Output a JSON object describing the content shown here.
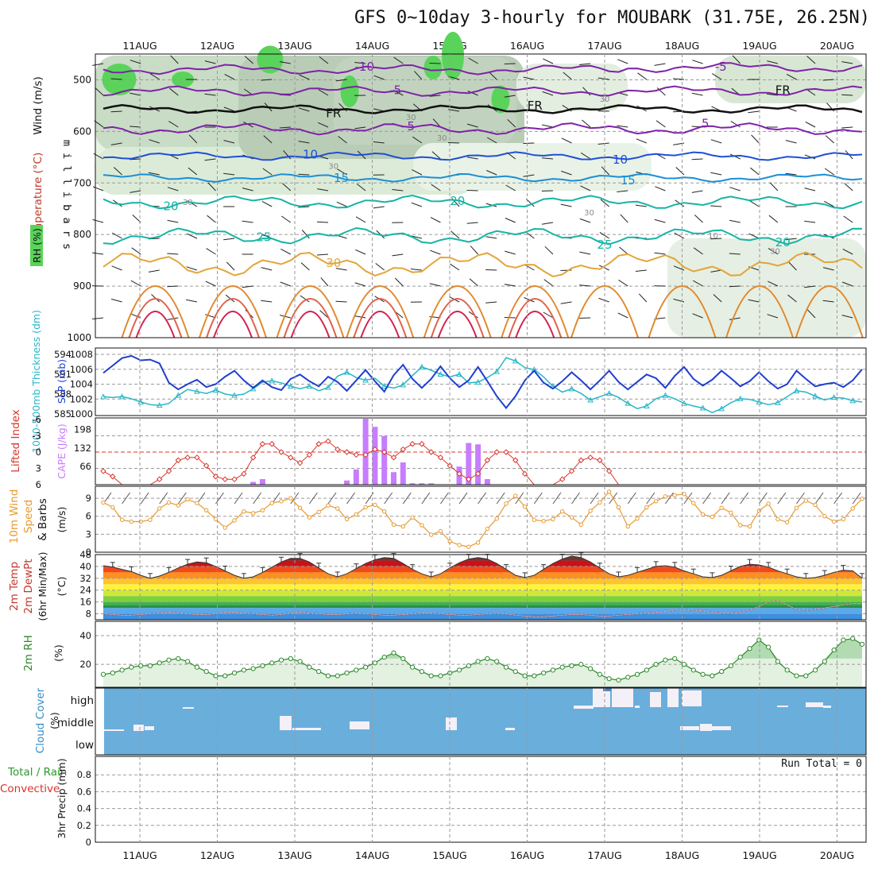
{
  "title": "GFS 0~10day 3-hourly for MOUBARK (31.75E, 26.25N)",
  "colors": {
    "temperature_label": "#c0392b",
    "wind_label": "#111111",
    "rh_green": "#5ad35a",
    "slp_line": "#1f3fcf",
    "thickness_line": "#29b6c8",
    "lifted_index_line": "#d9342b",
    "cape_bars": "#c77dff",
    "wind_speed_line": "#e79a30",
    "cloud_bg": "#6aaedb",
    "cloud_fill": "#f4f0f8",
    "rh2m_fill": "#8cc98c"
  },
  "chart_data": [
    {
      "panel": "upper_air",
      "type": "heatmap",
      "categories": [
        "11AUG",
        "12AUG",
        "13AUG",
        "14AUG",
        "15AUG",
        "16AUG",
        "17AUG",
        "18AUG",
        "19AUG",
        "20AUG"
      ],
      "ylabel": "m i l l i b a r s",
      "y_ticks": [
        500,
        600,
        700,
        800,
        900,
        1000
      ],
      "ylim": [
        450,
        1000
      ],
      "side_labels": [
        "Wind (m/s)",
        "Temperature (°C)",
        "RH (%)"
      ],
      "rh_legend": "RH (%)",
      "contour_labels": [
        {
          "text": "-10",
          "x": 2.9,
          "p": 475
        },
        {
          "text": "-5",
          "x": 3.3,
          "p": 520
        },
        {
          "text": "-5",
          "x": 7.5,
          "p": 475
        },
        {
          "text": "FR",
          "x": 2.5,
          "p": 565
        },
        {
          "text": "FR",
          "x": 5.1,
          "p": 550
        },
        {
          "text": "FR",
          "x": 8.3,
          "p": 520
        },
        {
          "text": "5",
          "x": 3.5,
          "p": 590
        },
        {
          "text": "5",
          "x": 7.3,
          "p": 585
        },
        {
          "text": "10",
          "x": 2.2,
          "p": 645
        },
        {
          "text": "10",
          "x": 6.2,
          "p": 655
        },
        {
          "text": "15",
          "x": 2.6,
          "p": 690
        },
        {
          "text": "15",
          "x": 6.3,
          "p": 695
        },
        {
          "text": "20",
          "x": 0.4,
          "p": 745
        },
        {
          "text": "20",
          "x": 4.1,
          "p": 735
        },
        {
          "text": "20",
          "x": 8.3,
          "p": 815
        },
        {
          "text": "25",
          "x": 1.6,
          "p": 805
        },
        {
          "text": "25",
          "x": 6.0,
          "p": 820
        },
        {
          "text": "30",
          "x": 2.5,
          "p": 855
        },
        {
          "text": "30",
          "x": 3.5,
          "p": 570
        },
        {
          "text": "-30",
          "x": 0.6,
          "p": 735
        },
        {
          "text": "10",
          "x": 7.4,
          "p": 800
        },
        {
          "text": "30",
          "x": 6.0,
          "p": 535
        },
        {
          "text": "30",
          "x": 3.9,
          "p": 610
        },
        {
          "text": "30",
          "x": 2.5,
          "p": 665
        },
        {
          "text": "30",
          "x": 5.8,
          "p": 755
        },
        {
          "text": "30",
          "x": 8.2,
          "p": 830
        }
      ]
    },
    {
      "panel": "slp_thickness",
      "type": "line",
      "ylabel_left": "1000-500mb Thickness (dm)",
      "ylabel_right": "SLP (mb)",
      "y_left_ticks": [
        "594",
        "591",
        "588",
        "585"
      ],
      "y_right_ticks": [
        "1008",
        "1006",
        "1004",
        "1002",
        "1000"
      ],
      "series": [
        {
          "name": "SLP (mb)",
          "values": [
            1005.5,
            1006.5,
            1007.5,
            1007.8,
            1007.2,
            1007.3,
            1006.8,
            1004.2,
            1003.3,
            1004,
            1004.6,
            1003.6,
            1004,
            1005,
            1005.8,
            1004.5,
            1003.5,
            1004.5,
            1003.6,
            1003.2,
            1004.7,
            1005.3,
            1004.4,
            1003.7,
            1005,
            1004.3,
            1003.1,
            1004.5,
            1005.9,
            1004.4,
            1003,
            1005.2,
            1006.6,
            1004.7,
            1003.5,
            1004.7,
            1006.4,
            1004.8,
            1003.6,
            1004.5,
            1006.3,
            1004.4,
            1002.4,
            1000.8,
            1002.4,
            1004.5,
            1005.8,
            1004.2,
            1003.4,
            1004.4,
            1005.6,
            1004.5,
            1003.3,
            1004.5,
            1005.8,
            1004.3,
            1003.3,
            1004.3,
            1005.3,
            1004.8,
            1003.5,
            1005.1,
            1006.3,
            1004.7,
            1003.8,
            1004.6,
            1005.8,
            1004.8,
            1003.7,
            1004.4,
            1005.6,
            1004.4,
            1003.4,
            1004,
            1005.8,
            1004.7,
            1003.7,
            1004,
            1004.2,
            1003.6,
            1004.5,
            1006
          ]
        },
        {
          "name": "Thickness (dm)",
          "values": [
            587.6,
            587.5,
            587.6,
            587.3,
            586.8,
            586.4,
            586.3,
            586.6,
            587.8,
            588.7,
            588.4,
            588.1,
            588.6,
            588,
            587.8,
            588,
            588.8,
            589.8,
            590,
            589.7,
            589.2,
            588.8,
            589.2,
            588.5,
            589,
            590.7,
            591.3,
            590.5,
            590.1,
            590.4,
            589.2,
            588.9,
            589.4,
            590.8,
            592.1,
            591.6,
            591,
            590.6,
            591,
            589.7,
            589.8,
            590.5,
            591.4,
            593.5,
            593,
            592,
            591.7,
            590.6,
            589.2,
            588.3,
            588.8,
            588.1,
            587.1,
            587.6,
            588.1,
            587.5,
            586.6,
            585.8,
            586.2,
            587.3,
            587.8,
            587.3,
            586.6,
            586.2,
            585.9,
            585.2,
            585.8,
            586.7,
            587.3,
            587.2,
            586.8,
            586.4,
            586.7,
            587.6,
            588.5,
            588.3,
            587.7,
            587.1,
            587.5,
            587.4,
            587,
            586.8
          ]
        }
      ]
    },
    {
      "panel": "li_cape",
      "type": "bar",
      "ylabel_left": "Lifted Index",
      "ylabel_right": "CAPE (J/kg)",
      "li_ticks": [
        "-6",
        "-3",
        "0",
        "3",
        "6"
      ],
      "cape_ticks": [
        "198",
        "132",
        "66"
      ],
      "series": [
        {
          "name": "Lifted Index",
          "values": [
            3.5,
            4.5,
            6,
            6,
            6,
            6,
            5,
            3.5,
            1.5,
            1,
            1,
            2.5,
            4.5,
            5,
            5,
            4,
            1,
            -1.5,
            -1.5,
            0,
            1,
            2,
            0.5,
            -1.5,
            -2,
            -0.5,
            0,
            0.5,
            0.5,
            -0.5,
            0,
            1,
            -0.5,
            -1.5,
            -1.5,
            0,
            1,
            2.5,
            4,
            5,
            4,
            1.5,
            0,
            0,
            1.5,
            4,
            6,
            6,
            6,
            5,
            3.5,
            1.5,
            1,
            1.5,
            3.5,
            6,
            6,
            6,
            6,
            6,
            6,
            6,
            6,
            6,
            6,
            6,
            6,
            6,
            6,
            6,
            6,
            6,
            6,
            6,
            6,
            6,
            6,
            6,
            6,
            6,
            6,
            6
          ]
        },
        {
          "name": "CAPE (J/kg)",
          "values": [
            0,
            0,
            0,
            0,
            0,
            0,
            0,
            0,
            0,
            0,
            0,
            0,
            0,
            0,
            0,
            0,
            10,
            20,
            0,
            0,
            0,
            0,
            0,
            0,
            0,
            0,
            15,
            55,
            237,
            208,
            175,
            45,
            80,
            5,
            5,
            5,
            0,
            0,
            65,
            150,
            145,
            20,
            0,
            0,
            0,
            0,
            0,
            0,
            0,
            0,
            0,
            0,
            0,
            0,
            0,
            0,
            0,
            0,
            0,
            0,
            0,
            0,
            0,
            0,
            0,
            0,
            0,
            0,
            0,
            0,
            0,
            0,
            0,
            0,
            0,
            0,
            0,
            0,
            0,
            0,
            0,
            0
          ]
        }
      ]
    },
    {
      "panel": "wind10m",
      "type": "line",
      "ylabel": "10m Wind Speed & Barbs (m/s)",
      "ylim": [
        0,
        11
      ],
      "y_ticks": [
        "9",
        "6",
        "3",
        "0"
      ],
      "series": [
        {
          "name": "Speed (m/s)",
          "values": [
            8.3,
            7.5,
            5.4,
            5.1,
            5.1,
            5.4,
            7.3,
            8.3,
            7.8,
            8.8,
            8.2,
            7,
            5.5,
            4.1,
            5.3,
            6.8,
            6.5,
            7,
            8.2,
            8.5,
            9,
            7.4,
            5.8,
            6.7,
            7.8,
            7.3,
            5.5,
            6.3,
            7.5,
            7.9,
            6.8,
            4.6,
            4.3,
            5.8,
            4.5,
            2.9,
            3.5,
            1.8,
            1.2,
            0.9,
            1.6,
            3.9,
            5.6,
            8.1,
            9.4,
            7.6,
            5.4,
            5.2,
            5.5,
            6.8,
            5.8,
            4.6,
            6.9,
            8.3,
            10.1,
            7.5,
            4.3,
            5.6,
            7.5,
            8.5,
            9.3,
            9.5,
            9.7,
            8.2,
            6.3,
            5.9,
            7.4,
            6.6,
            4.5,
            4.3,
            6.9,
            8.1,
            5.5,
            5,
            7.4,
            8.6,
            7.9,
            6,
            5.1,
            5.5,
            7.3,
            8.9
          ]
        }
      ]
    },
    {
      "panel": "temp2m",
      "type": "area",
      "ylabel": "2m Temp 2m DewPt (6hr Min/Max) (°C)",
      "y_ticks": [
        "48",
        "40",
        "32",
        "24",
        "16",
        "8"
      ],
      "ylim": [
        4,
        48
      ],
      "series": [
        {
          "name": "2m Temp",
          "values": [
            40.5,
            39.5,
            38,
            36.5,
            34,
            32,
            33.5,
            36,
            39,
            41.5,
            43,
            42.5,
            40,
            37,
            34,
            32,
            33,
            36,
            39.5,
            43,
            45.5,
            45.5,
            43,
            39,
            35,
            33,
            35,
            38.5,
            42,
            44.5,
            46,
            45.5,
            42,
            38,
            35,
            33,
            35,
            39,
            42.5,
            45,
            46,
            45,
            42,
            38,
            34,
            32.5,
            34,
            38,
            42,
            45,
            47,
            46,
            43,
            39,
            35,
            33,
            34,
            36,
            38,
            40,
            40.5,
            39.5,
            37,
            35,
            33,
            32.5,
            34,
            37,
            40,
            41.5,
            41,
            39.5,
            37,
            35,
            33,
            32,
            32.5,
            34,
            36,
            37.5,
            37,
            32
          ]
        },
        {
          "name": "2m DewPt",
          "values": [
            8,
            7.5,
            7,
            7,
            7.5,
            8,
            8.5,
            9,
            8.5,
            8,
            7.5,
            7.5,
            8,
            9,
            9,
            8.5,
            8,
            7.5,
            7,
            7.5,
            8.5,
            9,
            8.5,
            8,
            7.5,
            7.5,
            8,
            8.5,
            8,
            7.5,
            7,
            7,
            7.5,
            8,
            8.5,
            8.5,
            8,
            7.5,
            7,
            7,
            7.5,
            8,
            8.5,
            8,
            7,
            6.5,
            6,
            6,
            6.5,
            7,
            7.5,
            7.5,
            7,
            6.5,
            6.5,
            7,
            7.5,
            8,
            8.5,
            9,
            9.5,
            10.5,
            11,
            10.5,
            10,
            9,
            8.5,
            8.5,
            9,
            10.5,
            13,
            16,
            17,
            14,
            11,
            10.5,
            11,
            12,
            13,
            14,
            15,
            15
          ]
        }
      ]
    },
    {
      "panel": "rh2m",
      "type": "area",
      "ylabel": "2m RH (%)",
      "ylim": [
        4,
        50
      ],
      "y_ticks": [
        "40",
        "20"
      ],
      "series": [
        {
          "name": "2m RH",
          "values": [
            13,
            14,
            16,
            18,
            19,
            19,
            21,
            23,
            24,
            22,
            18,
            15,
            12,
            12,
            14,
            16,
            17,
            19,
            21,
            23,
            24,
            22,
            18,
            15,
            12,
            12,
            14,
            16,
            18,
            21,
            25,
            28,
            24,
            18,
            15,
            12,
            12,
            14,
            16,
            19,
            22,
            24,
            22,
            18,
            15,
            12,
            12,
            14,
            16,
            18,
            19,
            20,
            17,
            13,
            10,
            9,
            11,
            13,
            16,
            20,
            23,
            24,
            20,
            16,
            13,
            12,
            15,
            19,
            25,
            31,
            37,
            32,
            22,
            16,
            12,
            12,
            16,
            22,
            30,
            37,
            38,
            34
          ]
        }
      ]
    },
    {
      "panel": "cloud",
      "type": "heatmap",
      "ylabel": "Cloud Cover (%)",
      "levels": [
        "high",
        "middle",
        "low"
      ]
    },
    {
      "panel": "precip",
      "type": "bar",
      "ylabel": "3hr Precip (mm)",
      "side_labels": [
        "Total / Rain",
        "Convective"
      ],
      "y_ticks": [
        "0.8",
        "0.6",
        "0.4",
        "0.2",
        "0"
      ],
      "ylim": [
        0,
        1
      ],
      "run_total": "Run Total = 0",
      "values": []
    }
  ]
}
